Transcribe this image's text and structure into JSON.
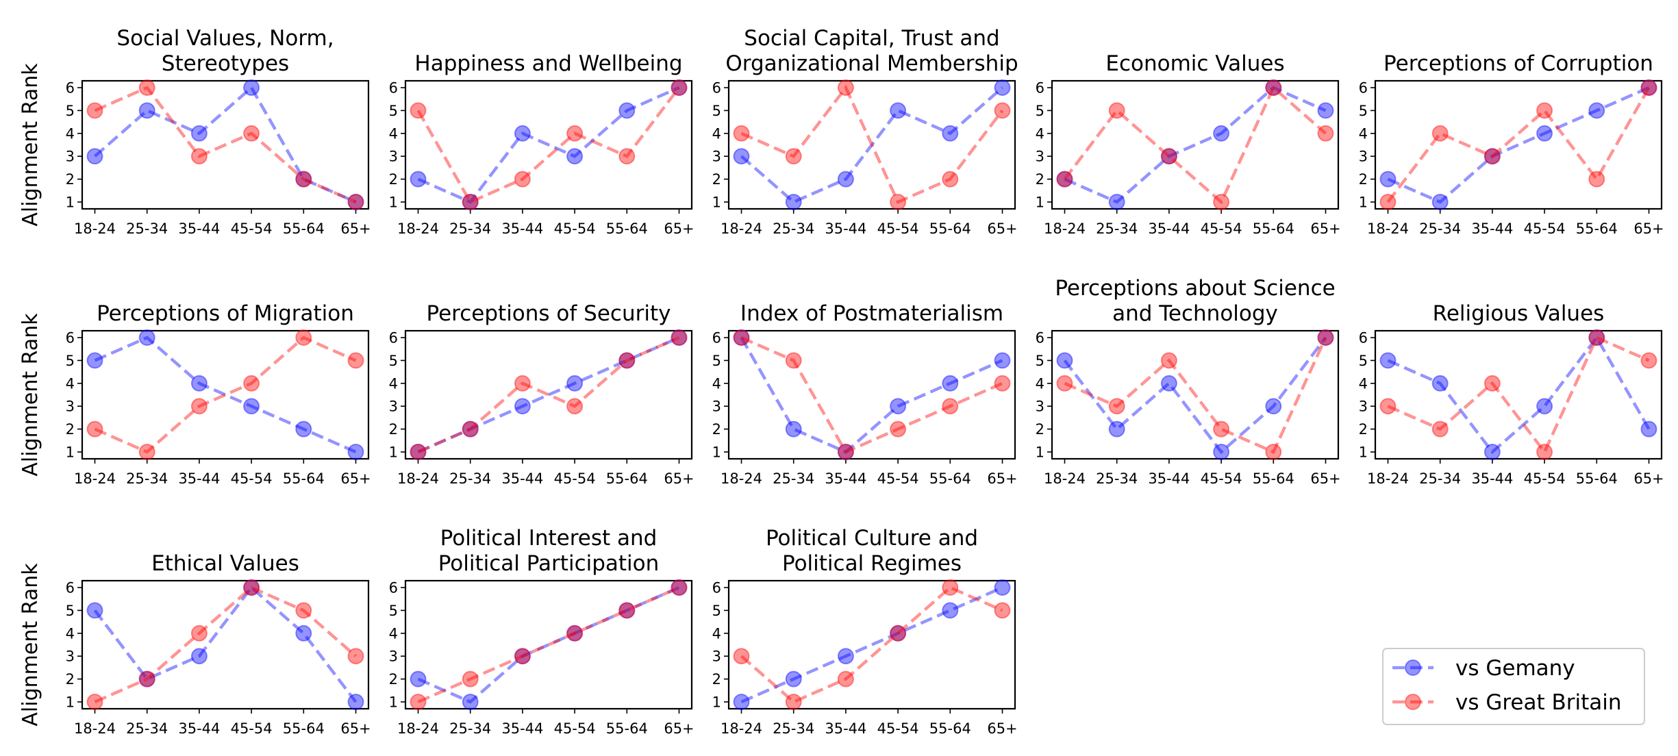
{
  "chart_data": {
    "type": "line",
    "ylabel": "Alignment Rank",
    "categories": [
      "18-24",
      "25-34",
      "35-44",
      "45-54",
      "55-64",
      "65+"
    ],
    "yticks": [
      "1",
      "2",
      "3",
      "4",
      "5",
      "6"
    ],
    "ylim": [
      1,
      6
    ],
    "legend": {
      "placement": "bottom-right",
      "entries": [
        {
          "name": "vs Gemany",
          "color": "#0000ff"
        },
        {
          "name": "vs Great Britain",
          "color": "#ff0000"
        }
      ]
    },
    "panels": [
      {
        "title": [
          "Social Values, Norm,",
          "Stereotypes"
        ],
        "series": [
          {
            "name": "vs Gemany",
            "values": [
              3,
              5,
              4,
              6,
              2,
              1
            ]
          },
          {
            "name": "vs Great Britain",
            "values": [
              5,
              6,
              3,
              4,
              2,
              1
            ]
          }
        ]
      },
      {
        "title": [
          "Happiness and Wellbeing"
        ],
        "series": [
          {
            "name": "vs Gemany",
            "values": [
              2,
              1,
              4,
              3,
              5,
              6
            ]
          },
          {
            "name": "vs Great Britain",
            "values": [
              5,
              1,
              2,
              4,
              3,
              6
            ]
          }
        ]
      },
      {
        "title": [
          "Social Capital, Trust and",
          "Organizational Membership"
        ],
        "series": [
          {
            "name": "vs Gemany",
            "values": [
              3,
              1,
              2,
              5,
              4,
              6
            ]
          },
          {
            "name": "vs Great Britain",
            "values": [
              4,
              3,
              6,
              1,
              2,
              5
            ]
          }
        ]
      },
      {
        "title": [
          "Economic Values"
        ],
        "series": [
          {
            "name": "vs Gemany",
            "values": [
              2,
              1,
              3,
              4,
              6,
              5
            ]
          },
          {
            "name": "vs Great Britain",
            "values": [
              2,
              5,
              3,
              1,
              6,
              4
            ]
          }
        ]
      },
      {
        "title": [
          "Perceptions of Corruption"
        ],
        "series": [
          {
            "name": "vs Gemany",
            "values": [
              2,
              1,
              3,
              4,
              5,
              6
            ]
          },
          {
            "name": "vs Great Britain",
            "values": [
              1,
              4,
              3,
              5,
              2,
              6
            ]
          }
        ]
      },
      {
        "title": [
          "Perceptions of Migration"
        ],
        "series": [
          {
            "name": "vs Gemany",
            "values": [
              5,
              6,
              4,
              3,
              2,
              1
            ]
          },
          {
            "name": "vs Great Britain",
            "values": [
              2,
              1,
              3,
              4,
              6,
              5
            ]
          }
        ]
      },
      {
        "title": [
          "Perceptions of Security"
        ],
        "series": [
          {
            "name": "vs Gemany",
            "values": [
              1,
              2,
              3,
              4,
              5,
              6
            ]
          },
          {
            "name": "vs Great Britain",
            "values": [
              1,
              2,
              4,
              3,
              5,
              6
            ]
          }
        ]
      },
      {
        "title": [
          "Index of Postmaterialism"
        ],
        "series": [
          {
            "name": "vs Gemany",
            "values": [
              6,
              2,
              1,
              3,
              4,
              5
            ]
          },
          {
            "name": "vs Great Britain",
            "values": [
              6,
              5,
              1,
              2,
              3,
              4
            ]
          }
        ]
      },
      {
        "title": [
          "Perceptions about Science",
          "and Technology"
        ],
        "series": [
          {
            "name": "vs Gemany",
            "values": [
              5,
              2,
              4,
              1,
              3,
              6
            ]
          },
          {
            "name": "vs Great Britain",
            "values": [
              4,
              3,
              5,
              2,
              1,
              6
            ]
          }
        ]
      },
      {
        "title": [
          "Religious Values"
        ],
        "series": [
          {
            "name": "vs Gemany",
            "values": [
              5,
              4,
              1,
              3,
              6,
              2
            ]
          },
          {
            "name": "vs Great Britain",
            "values": [
              3,
              2,
              4,
              1,
              6,
              5
            ]
          }
        ]
      },
      {
        "title": [
          "Ethical Values"
        ],
        "series": [
          {
            "name": "vs Gemany",
            "values": [
              5,
              2,
              3,
              6,
              4,
              1
            ]
          },
          {
            "name": "vs Great Britain",
            "values": [
              1,
              2,
              4,
              6,
              5,
              3
            ]
          }
        ]
      },
      {
        "title": [
          "Political Interest and",
          "Political Participation"
        ],
        "series": [
          {
            "name": "vs Gemany",
            "values": [
              2,
              1,
              3,
              4,
              5,
              6
            ]
          },
          {
            "name": "vs Great Britain",
            "values": [
              1,
              2,
              3,
              4,
              5,
              6
            ]
          }
        ]
      },
      {
        "title": [
          "Political Culture and",
          "Political Regimes"
        ],
        "series": [
          {
            "name": "vs Gemany",
            "values": [
              1,
              2,
              3,
              4,
              5,
              6
            ]
          },
          {
            "name": "vs Great Britain",
            "values": [
              3,
              1,
              2,
              4,
              6,
              5
            ]
          }
        ]
      }
    ]
  }
}
